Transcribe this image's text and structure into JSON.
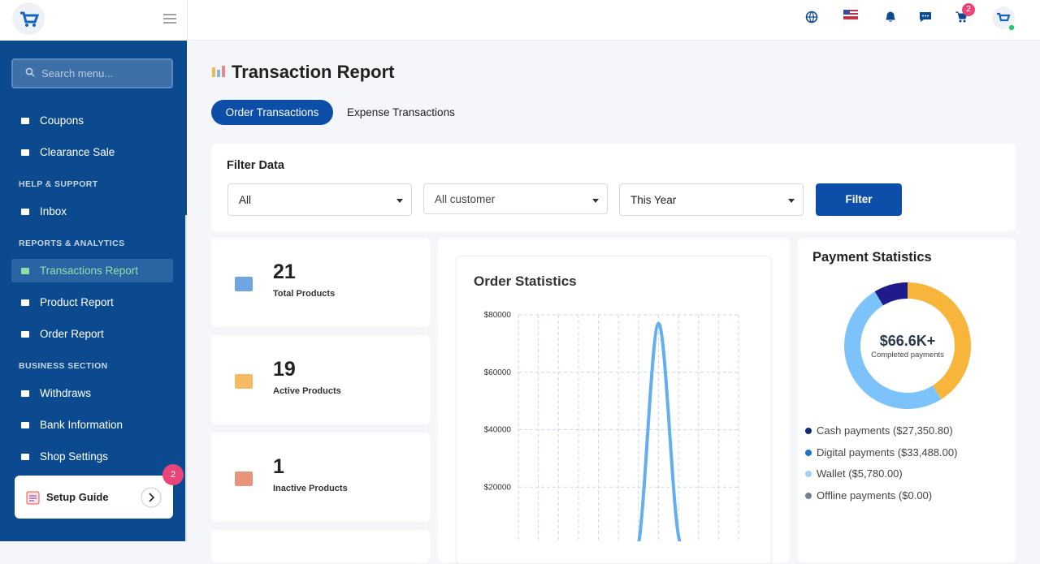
{
  "sidebar": {
    "search_placeholder": "Search menu...",
    "items": [
      {
        "label": "Coupons"
      },
      {
        "label": "Clearance Sale"
      },
      {
        "section": "HELP & SUPPORT"
      },
      {
        "label": "Inbox"
      },
      {
        "section": "REPORTS & ANALYTICS"
      },
      {
        "label": "Transactions Report",
        "active": true
      },
      {
        "label": "Product Report"
      },
      {
        "label": "Order Report"
      },
      {
        "section": "BUSINESS SECTION"
      },
      {
        "label": "Withdraws"
      },
      {
        "label": "Bank Information"
      },
      {
        "label": "Shop Settings"
      }
    ],
    "setup_guide": {
      "label": "Setup Guide",
      "badge": "2"
    }
  },
  "header": {
    "cart_badge": "2"
  },
  "page": {
    "title": "Transaction Report",
    "tabs": [
      {
        "label": "Order Transactions",
        "active": true
      },
      {
        "label": "Expense Transactions"
      }
    ],
    "filter": {
      "title": "Filter Data",
      "selects": [
        "All",
        "All customer",
        "This Year"
      ],
      "button": "Filter"
    },
    "stats": [
      {
        "value": "21",
        "label": "Total Products"
      },
      {
        "value": "19",
        "label": "Active Products"
      },
      {
        "value": "1",
        "label": "Inactive Products"
      }
    ],
    "order_statistics_title": "Order Statistics",
    "payment_statistics_title": "Payment Statistics"
  },
  "chart_data": [
    {
      "type": "line",
      "title": "Order Statistics",
      "categories": [
        null,
        null,
        null,
        null,
        null,
        null,
        null,
        null,
        null,
        null,
        null,
        null
      ],
      "series": [
        {
          "color": "#64aef0",
          "values": [
            0,
            0,
            0,
            0,
            0,
            0,
            0,
            77000,
            3000,
            0,
            0,
            0
          ]
        }
      ],
      "ylim": [
        0,
        80000
      ],
      "yticks": [
        {
          "value": 80000,
          "label": "$80000"
        },
        {
          "value": 60000,
          "label": "$60000"
        },
        {
          "value": 40000,
          "label": "$40000"
        },
        {
          "value": 20000,
          "label": "$20000"
        }
      ],
      "grid": true
    },
    {
      "type": "donut",
      "title": "Payment Statistics",
      "center_value": "$66.6K+",
      "center_label": "Completed payments",
      "series": [
        {
          "label": "Cash payments ($27,350.80)",
          "value": 27350.8,
          "color": "#f7b53b",
          "legend_color": "#0c2e6e"
        },
        {
          "label": "Digital payments ($33,488.00)",
          "value": 33488,
          "color": "#7cc3fb",
          "legend_color": "#1d74c4"
        },
        {
          "label": "Wallet ($5,780.00)",
          "value": 5780,
          "color": "#1f1b8c",
          "legend_color": "#a7d0f2"
        },
        {
          "label": "Offline payments ($0.00)",
          "value": 0,
          "color": "#7a8a99",
          "legend_color": "#6f8192"
        }
      ]
    }
  ]
}
